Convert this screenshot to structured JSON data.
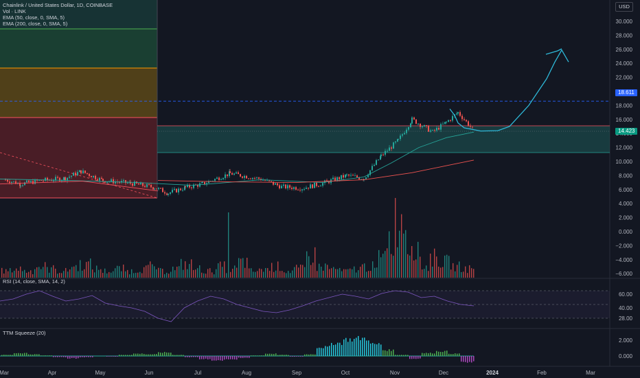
{
  "header": {
    "title": "Chainlink / United States Dollar, 1D, COINBASE",
    "indicators": [
      "Vol · LINK",
      "EMA (50, close, 0, SMA, 5)",
      "EMA (200, close, 0, SMA, 5)"
    ],
    "currency_button": "USD"
  },
  "price_axis": {
    "ticks": [
      "30.000",
      "28.000",
      "26.000",
      "24.000",
      "22.000",
      "20.000",
      "18.000",
      "16.000",
      "14.000",
      "12.000",
      "10.000",
      "8.000",
      "6.000",
      "4.000",
      "2.000",
      "0.000",
      "−2.000",
      "−4.000",
      "−6.000"
    ],
    "tick_values": [
      30,
      28,
      26,
      24,
      22,
      20,
      18,
      16,
      14,
      12,
      10,
      8,
      6,
      4,
      2,
      0,
      -2,
      -4,
      -6
    ],
    "level_tag": "18.611",
    "level_value": 18.611,
    "last_price_tag": "14.423",
    "last_price_value": 14.423
  },
  "rsi_pane": {
    "title": "RSI (14, close, SMA, 14, 2)",
    "ticks": [
      "60.00",
      "40.00",
      "28.00"
    ]
  },
  "squeeze_pane": {
    "title": "TTM Squeeze (20)",
    "ticks": [
      "2.000",
      "0.000"
    ]
  },
  "time_axis": {
    "labels": [
      "Mar",
      "Apr",
      "May",
      "Jun",
      "Jul",
      "Aug",
      "Sep",
      "Oct",
      "Nov",
      "Dec",
      "2024",
      "Feb",
      "Mar"
    ]
  },
  "colors": {
    "background": "#131722",
    "up": "#26a69a",
    "down": "#ef5350",
    "ema50": "#26a69a",
    "ema200": "#ef5350",
    "projection": "#2eb8d8",
    "level_line": "#2962ff",
    "rsi_line": "#7e57c2"
  },
  "chart_data": {
    "type": "candlestick",
    "symbol": "LINK/USD",
    "exchange": "COINBASE",
    "interval": "1D",
    "ylim": [
      -6.8,
      31.5
    ],
    "price_path": [
      {
        "x": "Mar",
        "y": 7.4
      },
      {
        "x": "Mar",
        "y": 6.8
      },
      {
        "x": "Apr",
        "y": 7.3
      },
      {
        "x": "Apr",
        "y": 7.6
      },
      {
        "x": "Apr",
        "y": 8.6
      },
      {
        "x": "May",
        "y": 7.3
      },
      {
        "x": "May",
        "y": 6.9
      },
      {
        "x": "Jun",
        "y": 6.3
      },
      {
        "x": "Jun",
        "y": 5.5
      },
      {
        "x": "Jul",
        "y": 6.3
      },
      {
        "x": "Jul",
        "y": 6.8
      },
      {
        "x": "Aug",
        "y": 8.3
      },
      {
        "x": "Aug",
        "y": 7.5
      },
      {
        "x": "Aug",
        "y": 6.4
      },
      {
        "x": "Sep",
        "y": 6.2
      },
      {
        "x": "Sep",
        "y": 6.9
      },
      {
        "x": "Oct",
        "y": 8.0
      },
      {
        "x": "Oct",
        "y": 7.6
      },
      {
        "x": "Oct",
        "y": 10.8
      },
      {
        "x": "Nov",
        "y": 13.0
      },
      {
        "x": "Nov",
        "y": 16.0
      },
      {
        "x": "Nov",
        "y": 14.2
      },
      {
        "x": "Dec",
        "y": 15.6
      },
      {
        "x": "Dec",
        "y": 17.0
      },
      {
        "x": "Dec",
        "y": 14.423
      }
    ],
    "projection_path": [
      {
        "x": "Dec",
        "y": 17.5
      },
      {
        "x": "Dec",
        "y": 16.0
      },
      {
        "x": "Dec",
        "y": 14.5
      },
      {
        "x": "2024",
        "y": 14.2
      },
      {
        "x": "2024",
        "y": 14.5
      },
      {
        "x": "Feb",
        "y": 20.0
      },
      {
        "x": "Feb",
        "y": 24.5
      },
      {
        "x": "Feb",
        "y": 25.8
      },
      {
        "x": "Mar",
        "y": 24.2
      }
    ],
    "volume_profile": [
      3,
      4,
      3,
      5,
      4,
      3,
      5,
      6,
      4,
      3,
      4,
      3,
      4,
      5,
      3,
      4,
      6,
      4,
      3,
      5,
      4,
      7,
      3,
      4,
      5,
      3,
      4,
      10,
      5,
      4,
      3,
      4,
      5,
      4,
      8,
      12,
      7,
      5,
      9,
      7,
      5,
      4
    ],
    "rsi_path": [
      55,
      58,
      65,
      70,
      62,
      55,
      58,
      63,
      52,
      48,
      45,
      40,
      30,
      25,
      45,
      55,
      62,
      58,
      50,
      45,
      40,
      38,
      42,
      48,
      55,
      60,
      65,
      62,
      58,
      66,
      70,
      68,
      60,
      62,
      55,
      50,
      48
    ],
    "rsi_levels": [
      70,
      50,
      30
    ],
    "squeeze_hist": [
      0.2,
      0.5,
      0.3,
      0.1,
      -0.2,
      -0.4,
      -0.2,
      0.0,
      -0.1,
      0.2,
      0.4,
      0.3,
      0.6,
      0.2,
      -0.2,
      -0.5,
      -0.8,
      -0.6,
      -0.3,
      0.1,
      0.4,
      0.2,
      -0.1,
      0.3,
      1.5,
      2.2,
      2.8,
      3.0,
      2.0,
      1.0,
      0.2,
      -0.5,
      0.5,
      0.8,
      0.4,
      -1.0
    ]
  }
}
